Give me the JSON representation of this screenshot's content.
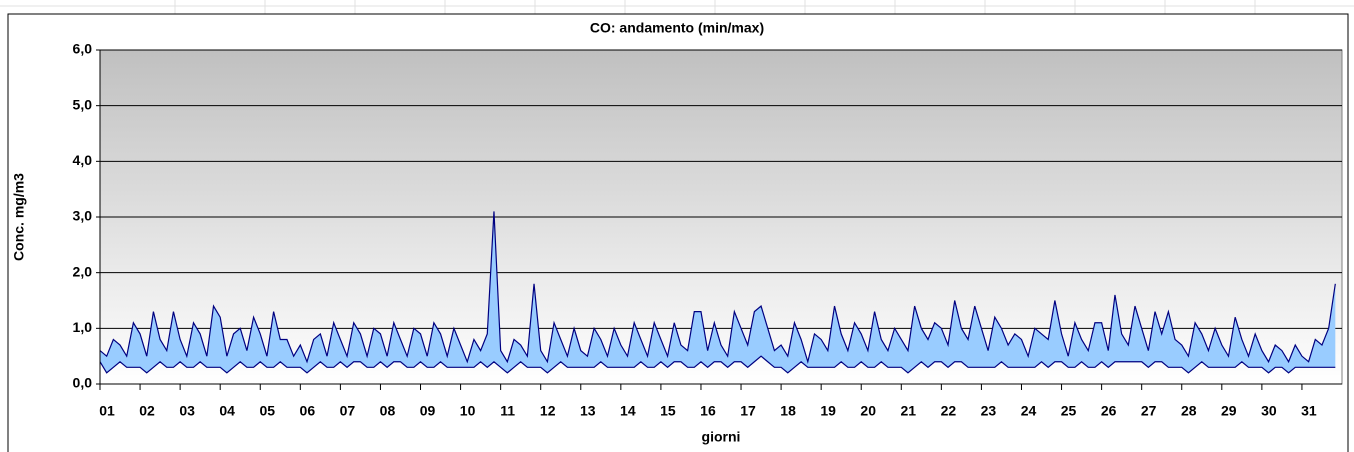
{
  "chart_data": {
    "type": "band",
    "title": "CO: andamento (min/max)",
    "y_label": "Conc. mg/m3",
    "x_label": "giorni",
    "xlim": [
      0,
      744
    ],
    "xticks": [
      {
        "value": 0,
        "label": "01"
      },
      {
        "value": 24,
        "label": "02"
      },
      {
        "value": 48,
        "label": "03"
      },
      {
        "value": 72,
        "label": "04"
      },
      {
        "value": 96,
        "label": "05"
      },
      {
        "value": 120,
        "label": "06"
      },
      {
        "value": 144,
        "label": "07"
      },
      {
        "value": 168,
        "label": "08"
      },
      {
        "value": 192,
        "label": "09"
      },
      {
        "value": 216,
        "label": "10"
      },
      {
        "value": 240,
        "label": "11"
      },
      {
        "value": 264,
        "label": "12"
      },
      {
        "value": 288,
        "label": "13"
      },
      {
        "value": 312,
        "label": "14"
      },
      {
        "value": 336,
        "label": "15"
      },
      {
        "value": 360,
        "label": "16"
      },
      {
        "value": 384,
        "label": "17"
      },
      {
        "value": 408,
        "label": "18"
      },
      {
        "value": 432,
        "label": "19"
      },
      {
        "value": 456,
        "label": "20"
      },
      {
        "value": 480,
        "label": "21"
      },
      {
        "value": 504,
        "label": "22"
      },
      {
        "value": 528,
        "label": "23"
      },
      {
        "value": 552,
        "label": "24"
      },
      {
        "value": 576,
        "label": "25"
      },
      {
        "value": 600,
        "label": "26"
      },
      {
        "value": 624,
        "label": "27"
      },
      {
        "value": 648,
        "label": "28"
      },
      {
        "value": 672,
        "label": "29"
      },
      {
        "value": 696,
        "label": "30"
      },
      {
        "value": 720,
        "label": "31"
      }
    ],
    "ylim": [
      0,
      6
    ],
    "yticks": [
      {
        "value": 0,
        "label": "0,0"
      },
      {
        "value": 1,
        "label": "1,0"
      },
      {
        "value": 2,
        "label": "2,0"
      },
      {
        "value": 3,
        "label": "3,0"
      },
      {
        "value": 4,
        "label": "4,0"
      },
      {
        "value": 5,
        "label": "5,0"
      },
      {
        "value": 6,
        "label": "6,0"
      }
    ],
    "grid": true,
    "band_color": "#99ccff",
    "x": [
      0,
      4,
      8,
      12,
      16,
      20,
      24,
      28,
      32,
      36,
      40,
      44,
      48,
      52,
      56,
      60,
      64,
      68,
      72,
      76,
      80,
      84,
      88,
      92,
      96,
      100,
      104,
      108,
      112,
      116,
      120,
      124,
      128,
      132,
      136,
      140,
      144,
      148,
      152,
      156,
      160,
      164,
      168,
      172,
      176,
      180,
      184,
      188,
      192,
      196,
      200,
      204,
      208,
      212,
      216,
      220,
      224,
      228,
      232,
      236,
      240,
      244,
      248,
      252,
      256,
      260,
      264,
      268,
      272,
      276,
      280,
      284,
      288,
      292,
      296,
      300,
      304,
      308,
      312,
      316,
      320,
      324,
      328,
      332,
      336,
      340,
      344,
      348,
      352,
      356,
      360,
      364,
      368,
      372,
      376,
      380,
      384,
      388,
      392,
      396,
      400,
      404,
      408,
      412,
      416,
      420,
      424,
      428,
      432,
      436,
      440,
      444,
      448,
      452,
      456,
      460,
      464,
      468,
      472,
      476,
      480,
      484,
      488,
      492,
      496,
      500,
      504,
      508,
      512,
      516,
      520,
      524,
      528,
      532,
      536,
      540,
      544,
      548,
      552,
      556,
      560,
      564,
      568,
      572,
      576,
      580,
      584,
      588,
      592,
      596,
      600,
      604,
      608,
      612,
      616,
      620,
      624,
      628,
      632,
      636,
      640,
      644,
      648,
      652,
      656,
      660,
      664,
      668,
      672,
      676,
      680,
      684,
      688,
      692,
      696,
      700,
      704,
      708,
      712,
      716,
      720,
      724,
      728,
      732,
      736,
      740
    ],
    "series": [
      {
        "color": "#000080",
        "values": [
          0.6,
          0.5,
          0.8,
          0.7,
          0.5,
          1.1,
          0.9,
          0.5,
          1.3,
          0.8,
          0.6,
          1.3,
          0.8,
          0.5,
          1.1,
          0.9,
          0.5,
          1.4,
          1.2,
          0.5,
          0.9,
          1.0,
          0.6,
          1.2,
          0.9,
          0.5,
          1.3,
          0.8,
          0.8,
          0.5,
          0.7,
          0.4,
          0.8,
          0.9,
          0.5,
          1.1,
          0.8,
          0.5,
          1.1,
          0.9,
          0.5,
          1.0,
          0.9,
          0.5,
          1.1,
          0.8,
          0.5,
          1.0,
          0.9,
          0.5,
          1.1,
          0.9,
          0.5,
          1.0,
          0.7,
          0.4,
          0.8,
          0.6,
          0.9,
          3.1,
          0.6,
          0.4,
          0.8,
          0.7,
          0.5,
          1.8,
          0.6,
          0.4,
          1.1,
          0.8,
          0.5,
          1.0,
          0.6,
          0.5,
          1.0,
          0.8,
          0.5,
          1.0,
          0.7,
          0.5,
          1.1,
          0.8,
          0.5,
          1.1,
          0.8,
          0.5,
          1.1,
          0.7,
          0.6,
          1.3,
          1.3,
          0.6,
          1.1,
          0.7,
          0.5,
          1.3,
          1.0,
          0.7,
          1.3,
          1.4,
          1.0,
          0.6,
          0.7,
          0.5,
          1.1,
          0.8,
          0.4,
          0.9,
          0.8,
          0.6,
          1.4,
          0.9,
          0.6,
          1.1,
          0.9,
          0.6,
          1.3,
          0.8,
          0.6,
          1.0,
          0.8,
          0.6,
          1.4,
          1.0,
          0.8,
          1.1,
          1.0,
          0.7,
          1.5,
          1.0,
          0.8,
          1.4,
          1.0,
          0.6,
          1.2,
          1.0,
          0.7,
          0.9,
          0.8,
          0.5,
          1.0,
          0.9,
          0.8,
          1.5,
          0.9,
          0.5,
          1.1,
          0.8,
          0.6,
          1.1,
          1.1,
          0.6,
          1.6,
          0.9,
          0.7,
          1.4,
          1.0,
          0.6,
          1.3,
          0.9,
          1.3,
          0.8,
          0.7,
          0.5,
          1.1,
          0.9,
          0.6,
          1.0,
          0.7,
          0.5,
          1.2,
          0.8,
          0.5,
          0.9,
          0.6,
          0.4,
          0.7,
          0.6,
          0.4,
          0.7,
          0.5,
          0.4,
          0.8,
          0.7,
          1.0,
          1.8
        ]
      },
      {
        "color": "#000080",
        "values": [
          0.4,
          0.2,
          0.3,
          0.4,
          0.3,
          0.3,
          0.3,
          0.2,
          0.3,
          0.4,
          0.3,
          0.3,
          0.4,
          0.3,
          0.3,
          0.4,
          0.3,
          0.3,
          0.3,
          0.2,
          0.3,
          0.4,
          0.3,
          0.3,
          0.4,
          0.3,
          0.3,
          0.4,
          0.3,
          0.3,
          0.3,
          0.2,
          0.3,
          0.4,
          0.3,
          0.3,
          0.4,
          0.3,
          0.4,
          0.4,
          0.3,
          0.3,
          0.4,
          0.3,
          0.4,
          0.4,
          0.3,
          0.3,
          0.4,
          0.3,
          0.3,
          0.4,
          0.3,
          0.3,
          0.3,
          0.3,
          0.3,
          0.4,
          0.3,
          0.4,
          0.3,
          0.2,
          0.3,
          0.4,
          0.3,
          0.3,
          0.3,
          0.2,
          0.3,
          0.4,
          0.3,
          0.3,
          0.3,
          0.3,
          0.3,
          0.4,
          0.3,
          0.3,
          0.3,
          0.3,
          0.3,
          0.4,
          0.3,
          0.3,
          0.4,
          0.3,
          0.4,
          0.4,
          0.3,
          0.3,
          0.4,
          0.3,
          0.4,
          0.4,
          0.3,
          0.4,
          0.4,
          0.3,
          0.4,
          0.5,
          0.4,
          0.3,
          0.3,
          0.2,
          0.3,
          0.4,
          0.3,
          0.3,
          0.3,
          0.3,
          0.3,
          0.4,
          0.3,
          0.3,
          0.4,
          0.3,
          0.3,
          0.4,
          0.3,
          0.3,
          0.3,
          0.2,
          0.3,
          0.4,
          0.3,
          0.4,
          0.4,
          0.3,
          0.4,
          0.4,
          0.3,
          0.3,
          0.3,
          0.3,
          0.3,
          0.4,
          0.3,
          0.3,
          0.3,
          0.3,
          0.3,
          0.4,
          0.3,
          0.4,
          0.4,
          0.3,
          0.3,
          0.4,
          0.3,
          0.3,
          0.4,
          0.3,
          0.4,
          0.4,
          0.4,
          0.4,
          0.4,
          0.3,
          0.4,
          0.4,
          0.3,
          0.3,
          0.3,
          0.2,
          0.3,
          0.4,
          0.3,
          0.3,
          0.3,
          0.3,
          0.3,
          0.4,
          0.3,
          0.3,
          0.3,
          0.2,
          0.3,
          0.3,
          0.2,
          0.3,
          0.3,
          0.3,
          0.3,
          0.3,
          0.3,
          0.3
        ]
      }
    ]
  }
}
